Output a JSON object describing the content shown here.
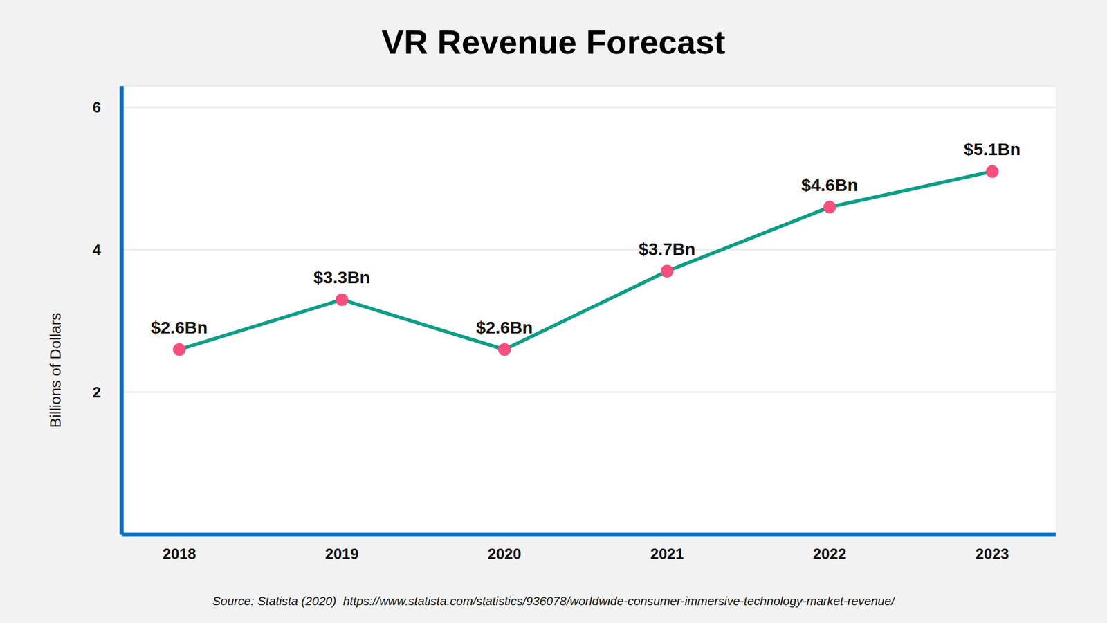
{
  "chart_data": {
    "type": "line",
    "title": "VR Revenue Forecast",
    "y_label": "Billions of Dollars",
    "source": "Source: Statista (2020)  https://www.statista.com/statistics/936078/worldwide-consumer-immersive-technology-market-revenue/",
    "categories": [
      "2018",
      "2019",
      "2020",
      "2021",
      "2022",
      "2023"
    ],
    "values": [
      2.6,
      3.3,
      2.6,
      3.7,
      4.6,
      5.1
    ],
    "value_labels": [
      "$2.6Bn",
      "$3.3Bn",
      "$2.6Bn",
      "$3.7Bn",
      "$4.6Bn",
      "$5.1Bn"
    ],
    "ylim": [
      0,
      6.3
    ],
    "yticks": [
      2,
      4,
      6
    ],
    "grid": true,
    "data_labels": true,
    "color": "#0d9e86",
    "marker": "circle"
  }
}
